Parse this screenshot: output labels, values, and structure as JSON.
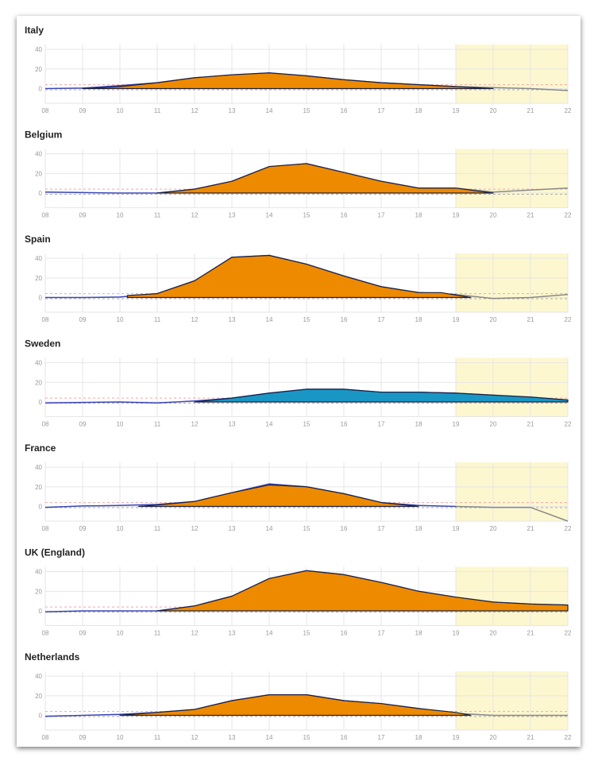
{
  "colors": {
    "excess_fill": "#ee8a00",
    "sweden_fill": "#1a96c4",
    "outline": "#1b2040",
    "line_blue": "#3b46b8",
    "line_grey": "#888888",
    "highlight": "#fdf7cf",
    "grid": "#e6e6e6",
    "threshold_red": "#f3a6a6",
    "baseline_grey": "#aaaaaa"
  },
  "chart_data": [
    {
      "type": "area",
      "title": "Italy",
      "fill": "orange",
      "x_ticks": [
        "08",
        "09",
        "10",
        "11",
        "12",
        "13",
        "14",
        "15",
        "16",
        "17",
        "18",
        "19",
        "20",
        "21",
        "22"
      ],
      "y_ticks": [
        40,
        20,
        0
      ],
      "ylim": [
        -15,
        45
      ],
      "highlight_from": 19,
      "line": [
        [
          8,
          0
        ],
        [
          9,
          0.5
        ],
        [
          10,
          3
        ],
        [
          11,
          6
        ],
        [
          12,
          11
        ],
        [
          13,
          14
        ],
        [
          14,
          16
        ],
        [
          15,
          13
        ],
        [
          16,
          9
        ],
        [
          17,
          6
        ],
        [
          18,
          4
        ],
        [
          19,
          2
        ],
        [
          20,
          1
        ],
        [
          21,
          0
        ],
        [
          22,
          -2
        ]
      ],
      "excess": [
        [
          9,
          0
        ],
        [
          10,
          2
        ],
        [
          11,
          6
        ],
        [
          12,
          11
        ],
        [
          13,
          14
        ],
        [
          14,
          16
        ],
        [
          15,
          13
        ],
        [
          16,
          9
        ],
        [
          17,
          6
        ],
        [
          18,
          4
        ],
        [
          19,
          2
        ],
        [
          20,
          0
        ]
      ]
    },
    {
      "type": "area",
      "title": "Belgium",
      "fill": "orange",
      "x_ticks": [
        "08",
        "09",
        "10",
        "11",
        "12",
        "13",
        "14",
        "15",
        "16",
        "17",
        "18",
        "19",
        "20",
        "21",
        "22"
      ],
      "y_ticks": [
        40,
        20,
        0
      ],
      "ylim": [
        -15,
        45
      ],
      "highlight_from": 19,
      "line": [
        [
          8,
          1
        ],
        [
          9,
          0.5
        ],
        [
          10,
          0
        ],
        [
          11,
          0
        ],
        [
          12,
          4
        ],
        [
          13,
          12
        ],
        [
          14,
          27
        ],
        [
          15,
          30
        ],
        [
          16,
          21
        ],
        [
          17,
          12
        ],
        [
          18,
          5
        ],
        [
          19,
          5
        ],
        [
          20,
          1
        ],
        [
          21,
          3
        ],
        [
          22,
          5
        ]
      ],
      "excess": [
        [
          11,
          0
        ],
        [
          12,
          4
        ],
        [
          13,
          12
        ],
        [
          14,
          27
        ],
        [
          15,
          30
        ],
        [
          16,
          21
        ],
        [
          17,
          12
        ],
        [
          18,
          5
        ],
        [
          19,
          5
        ],
        [
          20,
          0
        ]
      ]
    },
    {
      "type": "area",
      "title": "Spain",
      "fill": "orange",
      "x_ticks": [
        "08",
        "09",
        "10",
        "11",
        "12",
        "13",
        "14",
        "15",
        "16",
        "17",
        "18",
        "19",
        "20",
        "21",
        "22"
      ],
      "y_ticks": [
        40,
        20,
        0
      ],
      "ylim": [
        -15,
        45
      ],
      "highlight_from": 19,
      "line": [
        [
          8,
          0
        ],
        [
          9,
          0
        ],
        [
          10,
          0.5
        ],
        [
          11,
          4
        ],
        [
          12,
          17
        ],
        [
          13,
          41
        ],
        [
          14,
          43
        ],
        [
          15,
          34
        ],
        [
          16,
          22
        ],
        [
          17,
          11
        ],
        [
          18,
          5
        ],
        [
          19,
          3
        ],
        [
          20,
          -1
        ],
        [
          21,
          0
        ],
        [
          22,
          3
        ]
      ],
      "excess": [
        [
          10.2,
          0
        ],
        [
          10.2,
          2
        ],
        [
          11,
          4
        ],
        [
          12,
          17
        ],
        [
          13,
          41
        ],
        [
          14,
          43
        ],
        [
          15,
          34
        ],
        [
          16,
          22
        ],
        [
          17,
          11
        ],
        [
          18,
          5
        ],
        [
          18.6,
          5
        ],
        [
          19.4,
          0
        ]
      ]
    },
    {
      "type": "area",
      "title": "Sweden",
      "fill": "blue",
      "x_ticks": [
        "08",
        "09",
        "10",
        "11",
        "12",
        "13",
        "14",
        "15",
        "16",
        "17",
        "18",
        "19",
        "20",
        "21",
        "22"
      ],
      "y_ticks": [
        40,
        20,
        0
      ],
      "ylim": [
        -15,
        45
      ],
      "highlight_from": 19,
      "line": [
        [
          8,
          -1
        ],
        [
          9,
          -0.5
        ],
        [
          10,
          0
        ],
        [
          11,
          -1
        ],
        [
          12,
          1
        ],
        [
          13,
          4
        ],
        [
          14,
          9
        ],
        [
          15,
          13
        ],
        [
          16,
          13
        ],
        [
          17,
          10
        ],
        [
          18,
          10
        ],
        [
          19,
          9
        ],
        [
          20,
          7
        ],
        [
          21,
          5
        ],
        [
          22,
          2
        ]
      ],
      "excess": [
        [
          12,
          0
        ],
        [
          13,
          4
        ],
        [
          14,
          9
        ],
        [
          15,
          13
        ],
        [
          16,
          13
        ],
        [
          17,
          10
        ],
        [
          18,
          10
        ],
        [
          19,
          9
        ],
        [
          20,
          7
        ],
        [
          21,
          5
        ],
        [
          22,
          2
        ],
        [
          22,
          0
        ]
      ]
    },
    {
      "type": "area",
      "title": "France",
      "fill": "orange",
      "x_ticks": [
        "08",
        "09",
        "10",
        "11",
        "12",
        "13",
        "14",
        "15",
        "16",
        "17",
        "18",
        "19",
        "20",
        "21",
        "22"
      ],
      "y_ticks": [
        40,
        20,
        0
      ],
      "ylim": [
        -15,
        45
      ],
      "highlight_from": 19,
      "line": [
        [
          8,
          -1
        ],
        [
          9,
          0.5
        ],
        [
          10,
          1
        ],
        [
          11,
          2
        ],
        [
          12,
          5
        ],
        [
          13,
          14
        ],
        [
          14,
          23
        ],
        [
          15,
          20
        ],
        [
          16,
          13
        ],
        [
          17,
          4
        ],
        [
          18,
          1
        ],
        [
          19,
          0
        ],
        [
          20,
          -1
        ],
        [
          21,
          -1
        ],
        [
          22,
          -15
        ]
      ],
      "excess": [
        [
          10.5,
          0
        ],
        [
          11,
          1.5
        ],
        [
          12,
          5
        ],
        [
          13,
          14
        ],
        [
          14,
          22
        ],
        [
          15,
          20
        ],
        [
          16,
          13
        ],
        [
          17,
          4
        ],
        [
          18,
          0
        ]
      ]
    },
    {
      "type": "area",
      "title": "UK (England)",
      "fill": "orange",
      "x_ticks": [
        "08",
        "09",
        "10",
        "11",
        "12",
        "13",
        "14",
        "15",
        "16",
        "17",
        "18",
        "19",
        "20",
        "21",
        "22"
      ],
      "y_ticks": [
        40,
        20,
        0
      ],
      "ylim": [
        -15,
        45
      ],
      "highlight_from": 19,
      "line": [
        [
          8,
          -1
        ],
        [
          9,
          0
        ],
        [
          10,
          0
        ],
        [
          11,
          0
        ],
        [
          12,
          5
        ],
        [
          13,
          15
        ],
        [
          14,
          33
        ],
        [
          15,
          41
        ],
        [
          16,
          37
        ],
        [
          17,
          29
        ],
        [
          18,
          20
        ],
        [
          19,
          14
        ],
        [
          20,
          9
        ],
        [
          21,
          7
        ],
        [
          22,
          6
        ]
      ],
      "excess": [
        [
          11,
          0
        ],
        [
          12,
          5
        ],
        [
          13,
          15
        ],
        [
          14,
          33
        ],
        [
          15,
          41
        ],
        [
          16,
          37
        ],
        [
          17,
          29
        ],
        [
          18,
          20
        ],
        [
          19,
          14
        ],
        [
          20,
          9
        ],
        [
          21,
          7
        ],
        [
          22,
          6
        ],
        [
          22,
          1
        ]
      ]
    },
    {
      "type": "area",
      "title": "Netherlands",
      "fill": "orange",
      "x_ticks": [
        "08",
        "09",
        "10",
        "11",
        "12",
        "13",
        "14",
        "15",
        "16",
        "17",
        "18",
        "19",
        "20",
        "21",
        "22"
      ],
      "y_ticks": [
        40,
        20,
        0
      ],
      "ylim": [
        -15,
        45
      ],
      "highlight_from": 19,
      "line": [
        [
          8,
          -1
        ],
        [
          9,
          0
        ],
        [
          10,
          1
        ],
        [
          11,
          3
        ],
        [
          12,
          6
        ],
        [
          13,
          15
        ],
        [
          14,
          21
        ],
        [
          15,
          21
        ],
        [
          16,
          15
        ],
        [
          17,
          12
        ],
        [
          18,
          7
        ],
        [
          19,
          2
        ],
        [
          20,
          0
        ],
        [
          21,
          0
        ],
        [
          22,
          0
        ]
      ],
      "excess": [
        [
          10,
          0
        ],
        [
          11,
          3
        ],
        [
          12,
          6
        ],
        [
          13,
          15
        ],
        [
          14,
          21
        ],
        [
          15,
          21
        ],
        [
          16,
          15
        ],
        [
          17,
          12
        ],
        [
          18,
          7
        ],
        [
          19,
          3
        ],
        [
          19.4,
          0
        ]
      ]
    }
  ]
}
